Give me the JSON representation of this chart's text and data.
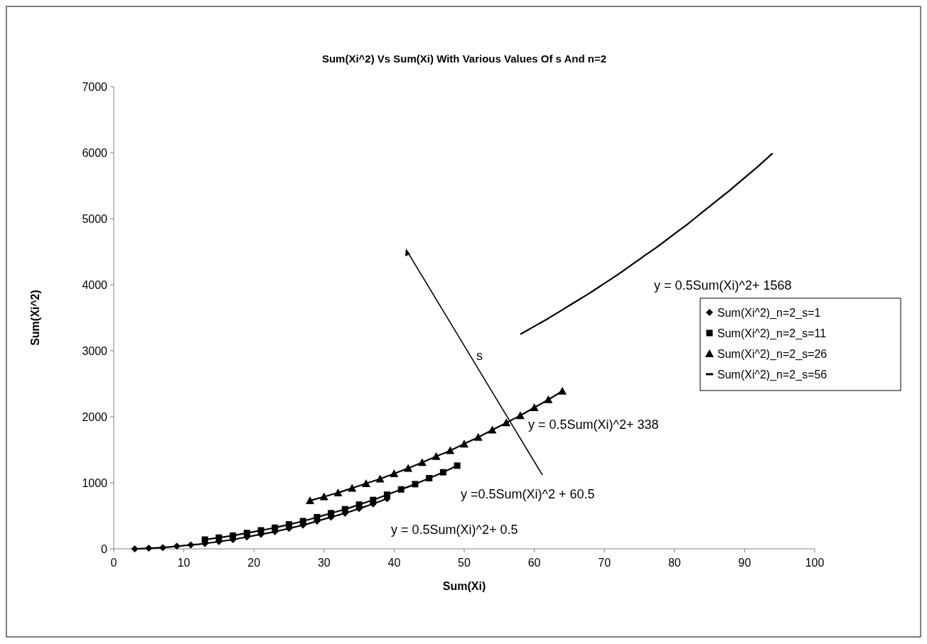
{
  "chart_data": {
    "type": "line",
    "title": "Sum(Xi^2) Vs Sum(Xi) With Various Values Of s And n=2",
    "xlabel": "Sum(Xi)",
    "ylabel": "Sum(Xi^2)",
    "xlim": [
      0,
      100
    ],
    "xticks": [
      0,
      10,
      20,
      30,
      40,
      50,
      60,
      70,
      80,
      90,
      100
    ],
    "ylim": [
      0,
      7000
    ],
    "yticks": [
      0,
      1000,
      2000,
      3000,
      4000,
      5000,
      6000,
      7000
    ],
    "grid": false,
    "legend": "right",
    "line_style": "solid",
    "series": [
      {
        "name": "Sum(Xi^2)_n=2_s=1",
        "color": "#000000",
        "marker": "diamond",
        "x": [
          3,
          5,
          7,
          9,
          11,
          13,
          15,
          17,
          19,
          21,
          23,
          25,
          27,
          29,
          31,
          33,
          35,
          37,
          39
        ],
        "values": [
          0,
          10,
          20,
          40,
          60,
          80,
          110,
          140,
          180,
          220,
          260,
          310,
          360,
          420,
          480,
          540,
          610,
          680,
          760
        ]
      },
      {
        "name": "Sum(Xi^2)_n=2_s=11",
        "color": "#000000",
        "marker": "square",
        "x": [
          13,
          15,
          17,
          19,
          21,
          23,
          25,
          27,
          29,
          31,
          33,
          35,
          37,
          39,
          41,
          43,
          45,
          47,
          49
        ],
        "values": [
          140,
          170,
          200,
          240,
          280,
          320,
          370,
          420,
          480,
          540,
          600,
          670,
          740,
          820,
          900,
          980,
          1070,
          1160,
          1260
        ]
      },
      {
        "name": "Sum(Xi^2)_n=2_s=26",
        "color": "#000000",
        "marker": "triangle",
        "x": [
          28,
          30,
          32,
          34,
          36,
          38,
          40,
          42,
          44,
          46,
          48,
          50,
          52,
          54,
          56,
          58,
          60,
          62,
          64
        ],
        "values": [
          730,
          790,
          850,
          920,
          990,
          1060,
          1140,
          1220,
          1310,
          1400,
          1490,
          1590,
          1690,
          1800,
          1910,
          2020,
          2140,
          2260,
          2390
        ]
      },
      {
        "name": "Sum(Xi^2)_n=2_s=56",
        "color": "#000000",
        "marker": "none",
        "x": [
          58,
          60,
          62,
          64,
          66,
          68,
          70,
          72,
          74,
          76,
          78,
          80,
          82,
          84,
          86,
          88,
          90,
          92,
          94
        ],
        "values": [
          3250,
          3370,
          3490,
          3620,
          3750,
          3880,
          4020,
          4160,
          4310,
          4460,
          4610,
          4770,
          4930,
          5100,
          5270,
          5440,
          5620,
          5800,
          5990
        ]
      }
    ],
    "annotations": [
      "y = 0.5Sum(Xi)^2+ 1568",
      "y = 0.5Sum(Xi)^2+ 338",
      "y =0.5Sum(Xi)^2 + 60.5",
      "y = 0.5Sum(Xi)^2+ 0.5",
      "s"
    ]
  }
}
